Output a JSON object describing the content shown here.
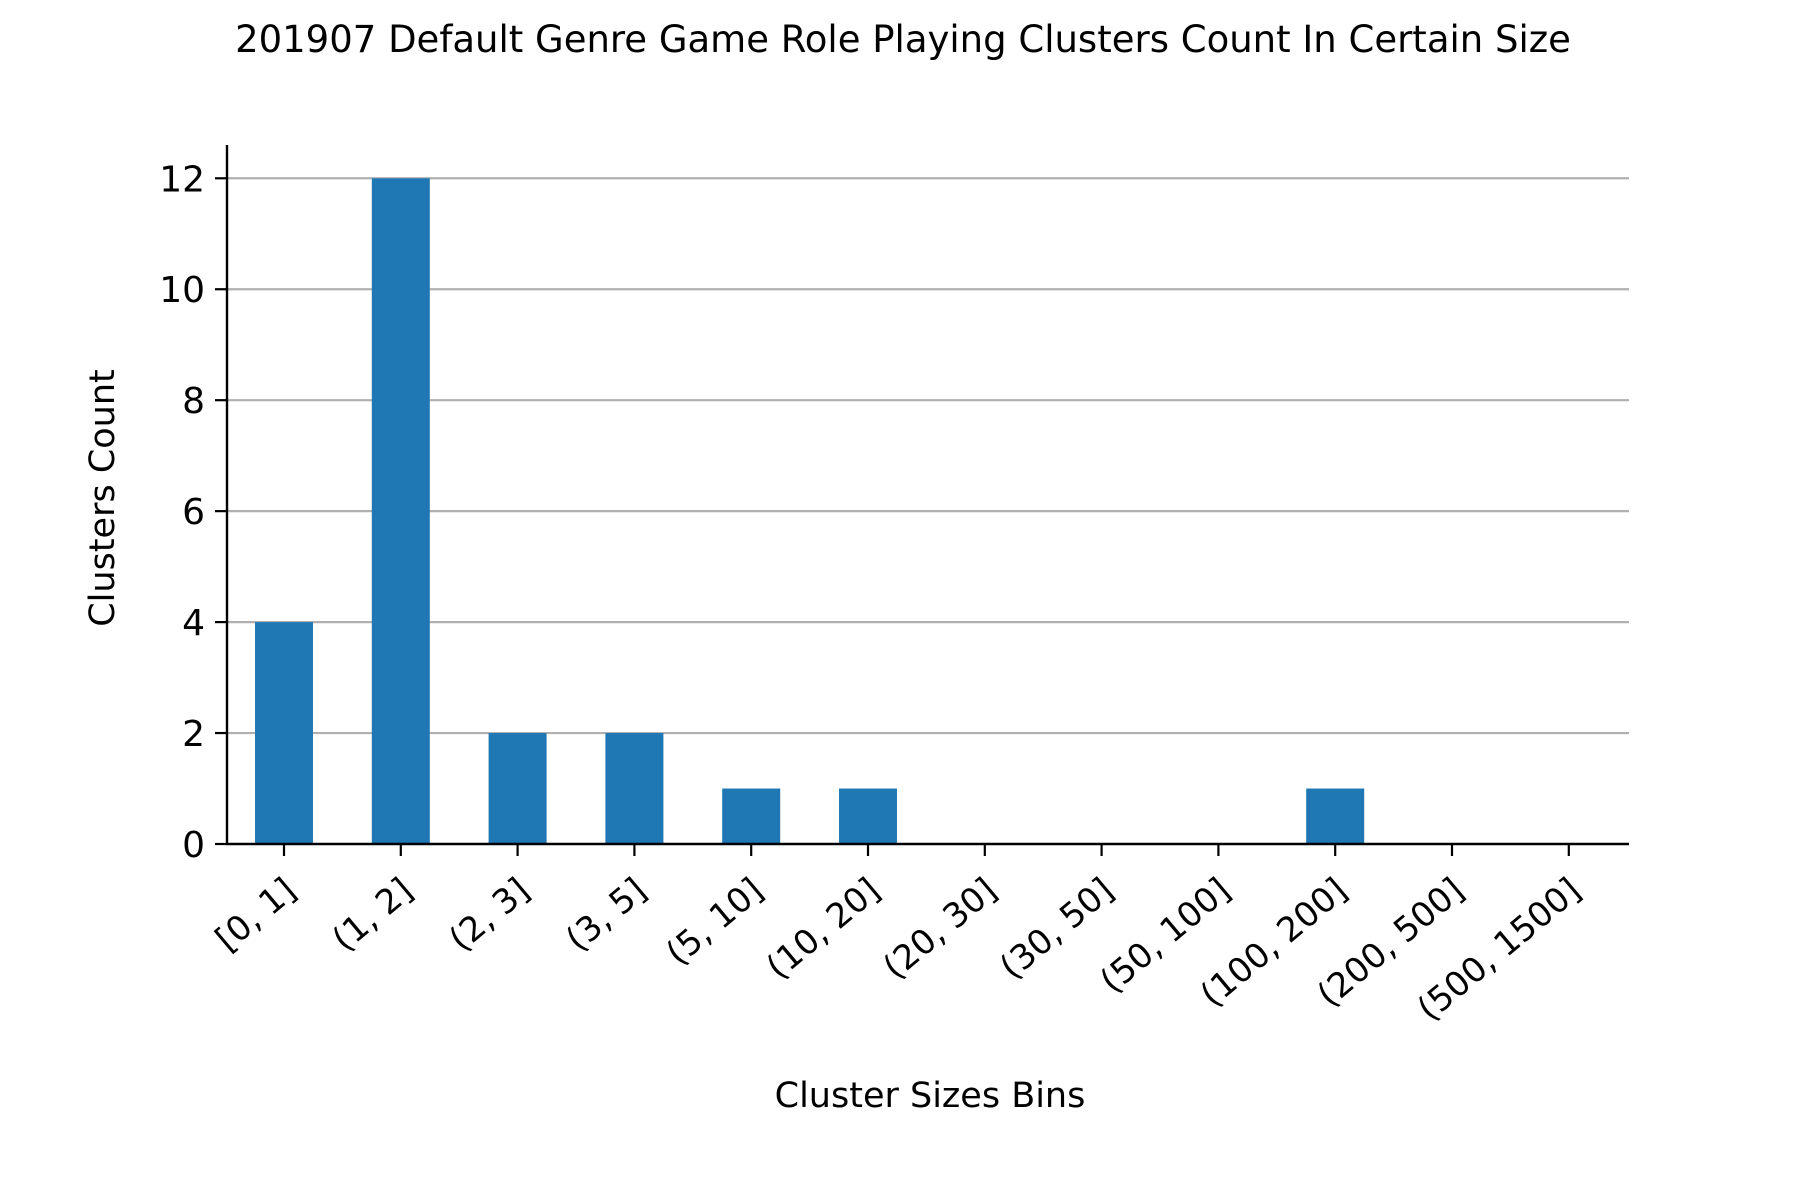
{
  "chart_data": {
    "type": "bar",
    "title": "201907 Default Genre Game Role Playing Clusters Count In Certain Size",
    "xlabel": "Cluster Sizes Bins",
    "ylabel": "Clusters Count",
    "categories": [
      "[0, 1]",
      "(1, 2]",
      "(2, 3]",
      "(3, 5]",
      "(5, 10]",
      "(10, 20]",
      "(20, 30]",
      "(30, 50]",
      "(50, 100]",
      "(100, 200]",
      "(200, 500]",
      "(500, 1500]"
    ],
    "values": [
      4,
      12,
      2,
      2,
      1,
      1,
      0,
      0,
      0,
      1,
      0,
      0
    ],
    "ylim": [
      0,
      12.6
    ],
    "yticks": [
      0,
      2,
      4,
      6,
      8,
      10,
      12
    ],
    "grid": "horizontal",
    "bar_color": "#1f77b4",
    "grid_color": "#b0b0b0"
  }
}
